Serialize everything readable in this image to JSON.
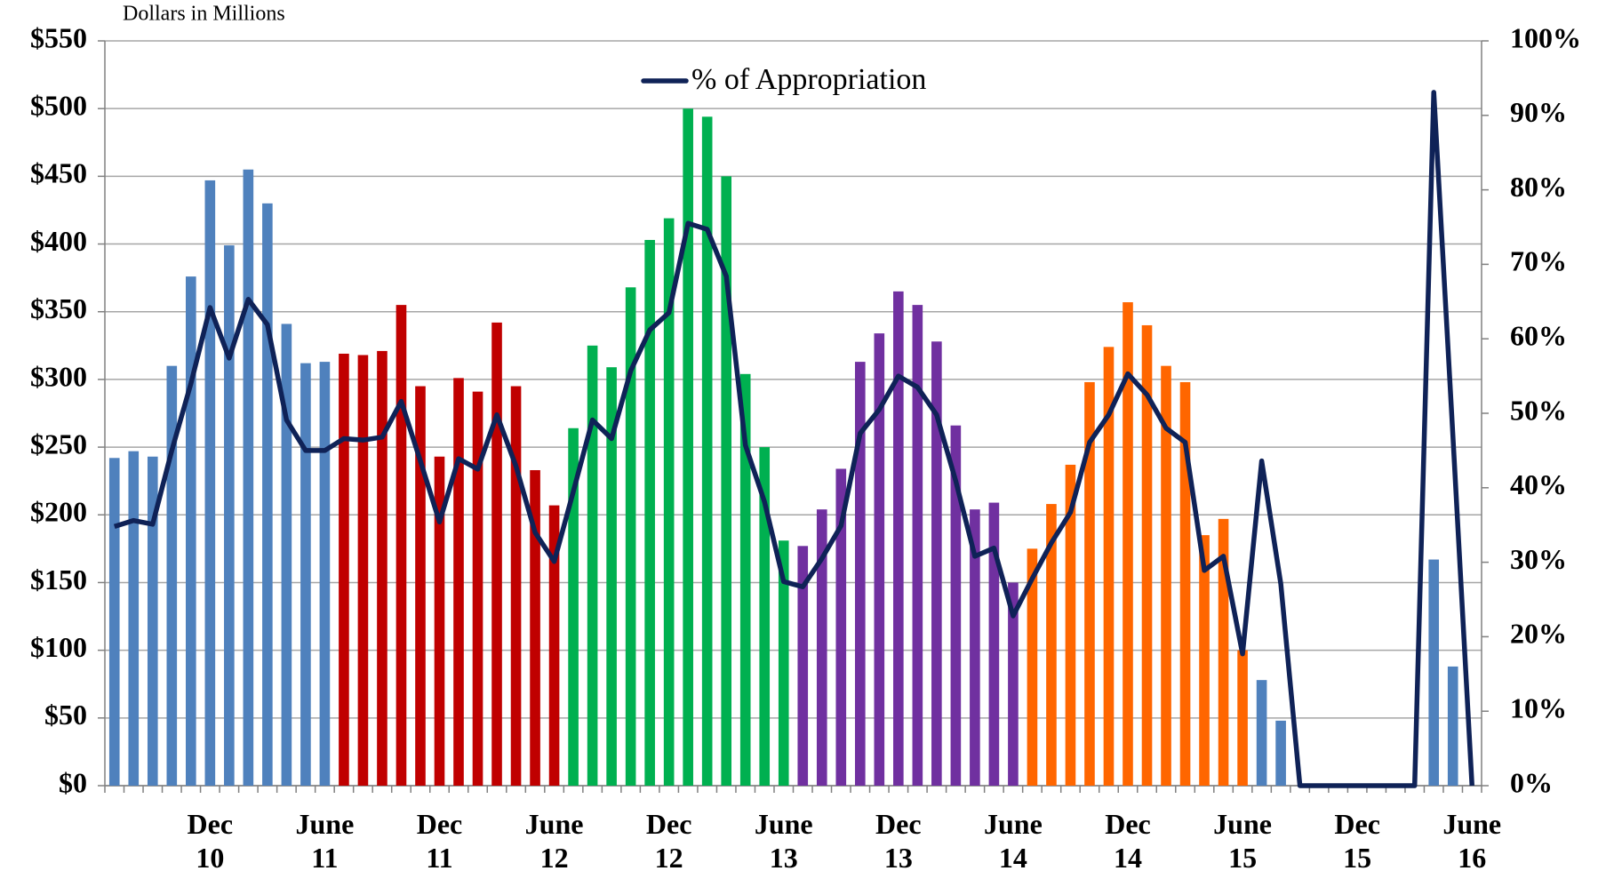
{
  "chart_data": {
    "type": "bar_line",
    "subtitle": "Dollars in Millions",
    "categories": [
      null,
      null,
      null,
      null,
      null,
      "Dec 10",
      null,
      null,
      null,
      null,
      null,
      "June 11",
      null,
      null,
      null,
      null,
      null,
      "Dec 11",
      null,
      null,
      null,
      null,
      null,
      "June 12",
      null,
      null,
      null,
      null,
      null,
      "Dec 12",
      null,
      null,
      null,
      null,
      null,
      "June 13",
      null,
      null,
      null,
      null,
      null,
      "Dec 13",
      null,
      null,
      null,
      null,
      null,
      "June 14",
      null,
      null,
      null,
      null,
      null,
      "Dec 14",
      null,
      null,
      null,
      null,
      null,
      "June 15",
      null,
      null,
      null,
      null,
      null,
      "Dec 15",
      null,
      null,
      null,
      null,
      null,
      "June 16"
    ],
    "series": [
      {
        "type": "bar",
        "colors": [
          "#4f81bd",
          "#4f81bd",
          "#4f81bd",
          "#4f81bd",
          "#4f81bd",
          "#4f81bd",
          "#4f81bd",
          "#4f81bd",
          "#4f81bd",
          "#4f81bd",
          "#4f81bd",
          "#4f81bd",
          "#c00000",
          "#c00000",
          "#c00000",
          "#c00000",
          "#c00000",
          "#c00000",
          "#c00000",
          "#c00000",
          "#c00000",
          "#c00000",
          "#c00000",
          "#c00000",
          "#00b050",
          "#00b050",
          "#00b050",
          "#00b050",
          "#00b050",
          "#00b050",
          "#00b050",
          "#00b050",
          "#00b050",
          "#00b050",
          "#00b050",
          "#00b050",
          "#7030a0",
          "#7030a0",
          "#7030a0",
          "#7030a0",
          "#7030a0",
          "#7030a0",
          "#7030a0",
          "#7030a0",
          "#7030a0",
          "#7030a0",
          "#7030a0",
          "#7030a0",
          "#ff6600",
          "#ff6600",
          "#ff6600",
          "#ff6600",
          "#ff6600",
          "#ff6600",
          "#ff6600",
          "#ff6600",
          "#ff6600",
          "#ff6600",
          "#ff6600",
          "#ff6600",
          "#4f81bd",
          "#4f81bd",
          "#4f81bd",
          "#4f81bd",
          "#4f81bd",
          "#4f81bd",
          "#4f81bd",
          "#4f81bd",
          "#4f81bd",
          "#4f81bd",
          "#4f81bd",
          "#4f81bd"
        ],
        "values": [
          242,
          247,
          243,
          310,
          376,
          447,
          399,
          455,
          430,
          341,
          312,
          313,
          319,
          318,
          321,
          355,
          295,
          243,
          301,
          291,
          342,
          295,
          233,
          207,
          264,
          325,
          309,
          368,
          403,
          419,
          500,
          494,
          450,
          304,
          250,
          181,
          177,
          204,
          234,
          313,
          334,
          365,
          355,
          328,
          266,
          204,
          209,
          150,
          175,
          208,
          237,
          298,
          324,
          357,
          340,
          310,
          298,
          185,
          197,
          100,
          78,
          48,
          0,
          0,
          0,
          0,
          0,
          0,
          0,
          167,
          88,
          0
        ]
      },
      {
        "type": "line",
        "name": "% of Appropriation",
        "color": "#0f2257",
        "axis": "y2",
        "values": [
          34.8,
          35.6,
          35.1,
          45,
          54,
          64.2,
          57.4,
          65.3,
          61.9,
          49.1,
          45,
          45,
          46.6,
          46.4,
          46.8,
          51.6,
          43.6,
          35.4,
          43.9,
          42.5,
          49.8,
          42.9,
          34,
          30.1,
          39.5,
          49.1,
          46.6,
          55.7,
          61.2,
          63.5,
          75.5,
          74.7,
          68.4,
          45.7,
          38.1,
          27.4,
          26.7,
          30.5,
          34.9,
          47.3,
          50.5,
          55,
          53.5,
          49.8,
          40.9,
          30.8,
          31.9,
          22.8,
          27.8,
          32.6,
          36.7,
          46.1,
          49.8,
          55.3,
          52.5,
          48,
          46.1,
          28.9,
          30.8,
          17.7,
          43.6,
          27.1,
          0,
          0,
          0,
          0,
          0,
          0,
          0,
          93.1,
          47,
          0
        ]
      }
    ],
    "ylim": [
      0,
      550
    ],
    "yticks": [
      {
        "value": 0,
        "label": "$0"
      },
      {
        "value": 50,
        "label": "$50"
      },
      {
        "value": 100,
        "label": "$100"
      },
      {
        "value": 150,
        "label": "$150"
      },
      {
        "value": 200,
        "label": "$200"
      },
      {
        "value": 250,
        "label": "$250"
      },
      {
        "value": 300,
        "label": "$300"
      },
      {
        "value": 350,
        "label": "$350"
      },
      {
        "value": 400,
        "label": "$400"
      },
      {
        "value": 450,
        "label": "$450"
      },
      {
        "value": 500,
        "label": "$500"
      },
      {
        "value": 550,
        "label": "$550"
      }
    ],
    "y2lim": [
      0,
      100
    ],
    "y2ticks": [
      {
        "value": 0,
        "label": "0%"
      },
      {
        "value": 10,
        "label": "10%"
      },
      {
        "value": 20,
        "label": "20%"
      },
      {
        "value": 30,
        "label": "30%"
      },
      {
        "value": 40,
        "label": "40%"
      },
      {
        "value": 50,
        "label": "50%"
      },
      {
        "value": 60,
        "label": "60%"
      },
      {
        "value": 70,
        "label": "70%"
      },
      {
        "value": 80,
        "label": "80%"
      },
      {
        "value": 90,
        "label": "90%"
      },
      {
        "value": 100,
        "label": "100%"
      }
    ],
    "grid": true,
    "legend": "top"
  }
}
